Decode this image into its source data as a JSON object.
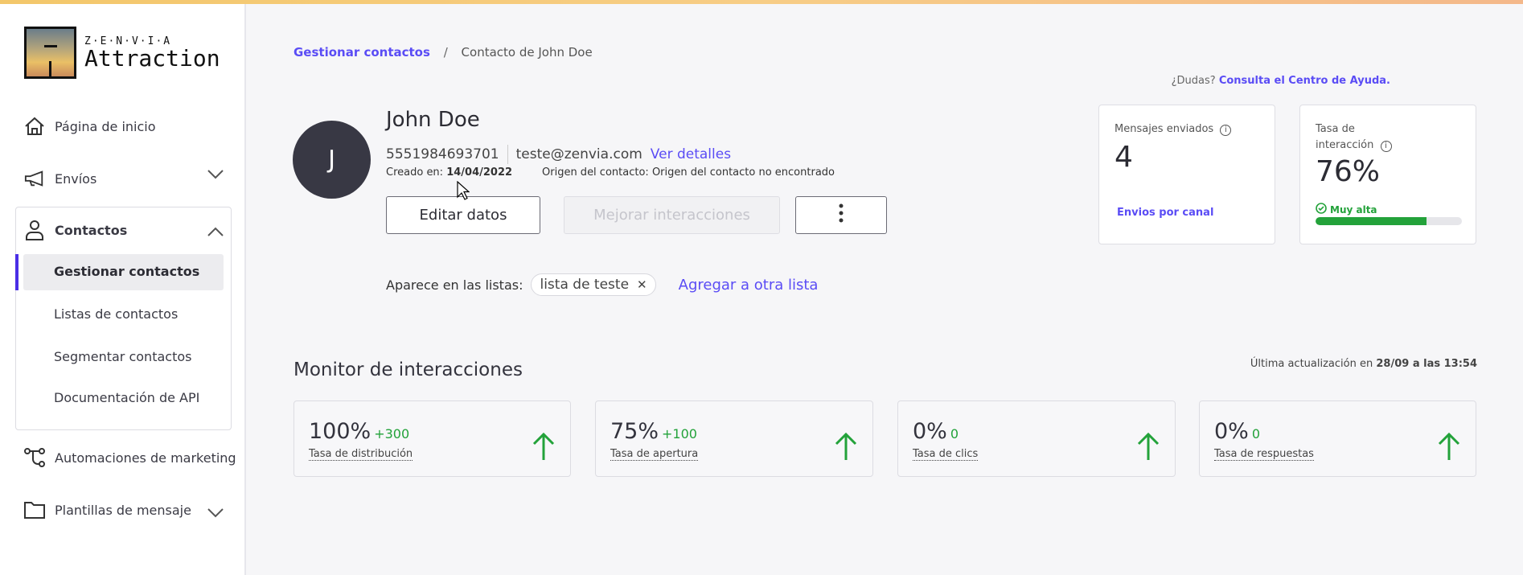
{
  "brand": {
    "top": "Z·E·N·V·I·A",
    "name": "Attraction"
  },
  "sidebar": {
    "items": [
      {
        "label": "Página de inicio",
        "icon": "home-icon"
      },
      {
        "label": "Envíos",
        "icon": "megaphone-icon"
      },
      {
        "label": "Contactos",
        "icon": "user-icon"
      },
      {
        "label": "Automaciones de marketing",
        "icon": "flow-icon"
      },
      {
        "label": "Plantillas de mensaje",
        "icon": "folder-icon"
      }
    ],
    "contactos_sub": [
      "Gestionar contactos",
      "Listas de contactos",
      "Segmentar contactos",
      "Documentación de API"
    ],
    "active": "Gestionar contactos"
  },
  "breadcrumb": {
    "parent": "Gestionar contactos",
    "separator": "/",
    "current": "Contacto de John Doe"
  },
  "help": {
    "prefix": "¿Dudas?",
    "link": "Consulta el Centro de Ayuda."
  },
  "contact": {
    "initial": "J",
    "name": "John Doe",
    "phone": "5551984693701",
    "email": "teste@zenvia.com",
    "details_link": "Ver detalles",
    "created_label": "Creado en:",
    "created_value": "14/04/2022",
    "origin_label": "Origen del contacto:",
    "origin_value": "Origen del contacto no encontrado",
    "edit_button": "Editar datos",
    "improve_button": "Mejorar interacciones",
    "lists_label": "Aparece en las listas:",
    "list_chip": "lista de teste",
    "add_list_link": "Agregar a otra lista"
  },
  "stats": {
    "messages_label": "Mensajes enviados",
    "messages_value": "4",
    "messages_link": "Envios por canal",
    "rate_label": "Tasa de interacción",
    "rate_value": "76%",
    "rate_status": "Muy alta",
    "rate_percent": 76
  },
  "monitor": {
    "title": "Monitor de interacciones",
    "updated_prefix": "Última actualización en",
    "updated_value": "28/09 a las 13:54",
    "metrics": [
      {
        "value": "100%",
        "delta": "+300",
        "label": "Tasa de distribución"
      },
      {
        "value": "75%",
        "delta": "+100",
        "label": "Tasa de apertura"
      },
      {
        "value": "0%",
        "delta": "0",
        "label": "Tasa de clics"
      },
      {
        "value": "0%",
        "delta": "0",
        "label": "Tasa de respuestas"
      }
    ]
  },
  "colors": {
    "accent": "#5a4cf5",
    "success": "#23a23a",
    "avatar": "#383844"
  }
}
